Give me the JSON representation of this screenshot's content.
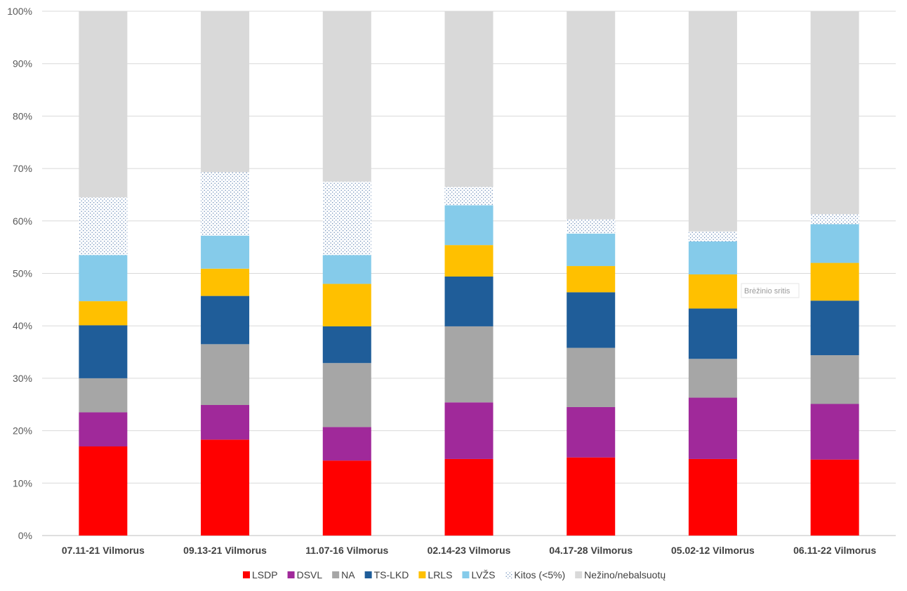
{
  "chart_data": {
    "type": "bar",
    "stacked": true,
    "title": "",
    "xlabel": "",
    "ylabel": "",
    "ylim": [
      0,
      100
    ],
    "y_ticks": [
      "0%",
      "10%",
      "20%",
      "30%",
      "40%",
      "50%",
      "60%",
      "70%",
      "80%",
      "90%",
      "100%"
    ],
    "grid": true,
    "legend_position": "bottom",
    "categories": [
      "07.11-21 Vilmorus",
      "09.13-21 Vilmorus",
      "11.07-16 Vilmorus",
      "02.14-23 Vilmorus",
      "04.17-28 Vilmorus",
      "05.02-12 Vilmorus",
      "06.11-22 Vilmorus"
    ],
    "series": [
      {
        "name": "LSDP",
        "color": "#ff0000",
        "pattern": "solid",
        "values": [
          17.0,
          18.3,
          14.3,
          14.6,
          14.9,
          14.6,
          14.5
        ]
      },
      {
        "name": "DSVL",
        "color": "#a0299a",
        "pattern": "solid",
        "values": [
          6.5,
          6.6,
          6.4,
          10.8,
          9.6,
          11.7,
          10.6
        ]
      },
      {
        "name": "NA",
        "color": "#a6a6a6",
        "pattern": "solid",
        "values": [
          6.5,
          11.6,
          12.2,
          14.5,
          11.3,
          7.4,
          9.3
        ]
      },
      {
        "name": "TS-LKD",
        "color": "#1f5d99",
        "pattern": "solid",
        "values": [
          10.1,
          9.2,
          7.0,
          9.5,
          10.6,
          9.6,
          10.4
        ]
      },
      {
        "name": "LRLS",
        "color": "#ffc000",
        "pattern": "solid",
        "values": [
          4.6,
          5.2,
          8.1,
          6.0,
          5.0,
          6.5,
          7.2
        ]
      },
      {
        "name": "LVŽS",
        "color": "#85cbea",
        "pattern": "solid",
        "values": [
          8.8,
          6.3,
          5.5,
          7.6,
          6.2,
          6.3,
          7.4
        ]
      },
      {
        "name": "Kitos (<5%)",
        "color": "#5b7fb0",
        "pattern": "dots",
        "values": [
          11.0,
          12.1,
          14.0,
          3.5,
          2.7,
          1.9,
          1.9
        ]
      },
      {
        "name": "Nežino/nebalsuotų",
        "color": "#d9d9d9",
        "pattern": "solid",
        "values": [
          35.5,
          30.7,
          32.5,
          33.5,
          39.7,
          42.0,
          38.7
        ]
      }
    ]
  },
  "overlay": {
    "tooltip_text": "Brėžinio sritis"
  }
}
